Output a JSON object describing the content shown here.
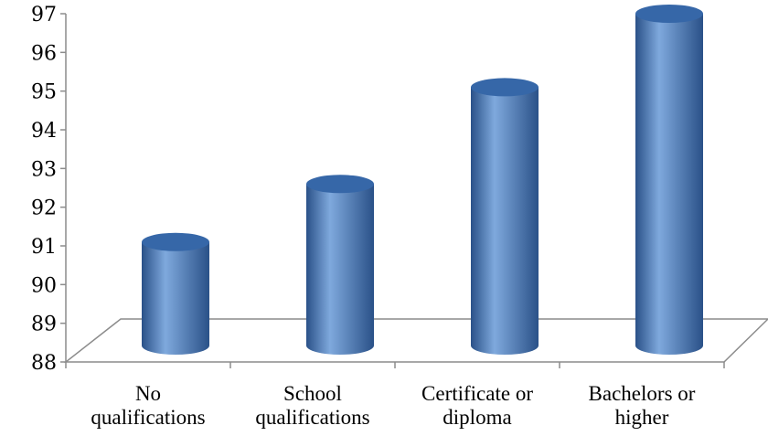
{
  "chart_data": {
    "type": "bar",
    "style": "3d-cylinder",
    "categories": [
      [
        "No",
        "qualifications"
      ],
      [
        "School",
        "qualifications"
      ],
      [
        "Certificate or",
        "diploma"
      ],
      [
        "Bachelors or",
        "higher"
      ]
    ],
    "values": [
      91.1,
      92.6,
      95.1,
      97.0
    ],
    "ylim": [
      88,
      97
    ],
    "yticks": [
      88,
      89,
      90,
      91,
      92,
      93,
      94,
      95,
      96,
      97
    ],
    "title": "",
    "xlabel": "",
    "ylabel": "",
    "legend": "none",
    "grid": false,
    "colors": {
      "bar": "#4a7ebf",
      "bar_light": "#7fa9dd",
      "bar_dark": "#2a5188",
      "bar_top": "#3667a8",
      "axis": "#8c8c8c"
    }
  }
}
